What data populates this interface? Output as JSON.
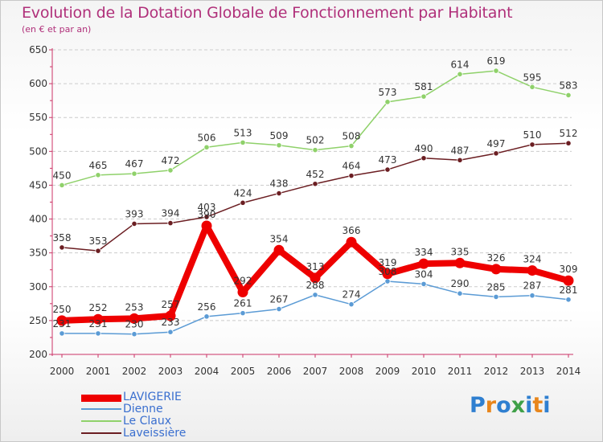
{
  "title": "Evolution de la Dotation Globale de Fonctionnement par Habitant",
  "subtitle": "(en € et par an)",
  "logo": {
    "text": "Proxiti"
  },
  "chart_data": {
    "type": "line",
    "title": "Evolution de la Dotation Globale de Fonctionnement par Habitant",
    "subtitle": "(en € et par an)",
    "xlabel": "",
    "ylabel": "",
    "ylim": [
      200,
      650
    ],
    "yticks": [
      200,
      250,
      300,
      350,
      400,
      450,
      500,
      550,
      600,
      650
    ],
    "categories": [
      "2000",
      "2001",
      "2002",
      "2003",
      "2004",
      "2005",
      "2006",
      "2007",
      "2008",
      "2009",
      "2010",
      "2011",
      "2012",
      "2013",
      "2014"
    ],
    "grid": "horizontal",
    "legend_position": "bottom-left",
    "series": [
      {
        "name": "Laveissière",
        "color": "#6b1e22",
        "values": [
          358,
          353,
          393,
          394,
          403,
          424,
          438,
          452,
          464,
          473,
          490,
          487,
          497,
          510,
          512
        ]
      },
      {
        "name": "Le Claux",
        "color": "#8fd16a",
        "values": [
          450,
          465,
          467,
          472,
          506,
          513,
          509,
          502,
          508,
          573,
          581,
          614,
          619,
          595,
          583
        ]
      },
      {
        "name": "Dienne",
        "color": "#5b9bd5",
        "values": [
          231,
          231,
          230,
          233,
          256,
          261,
          267,
          288,
          274,
          308,
          304,
          290,
          285,
          287,
          281
        ]
      },
      {
        "name": "LAVIGERIE",
        "color": "#ee0000",
        "values": [
          250,
          252,
          253,
          257,
          390,
          292,
          354,
          313,
          366,
          319,
          334,
          335,
          326,
          324,
          309
        ]
      }
    ]
  }
}
